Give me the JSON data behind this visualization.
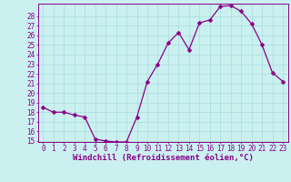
{
  "x": [
    0,
    1,
    2,
    3,
    4,
    5,
    6,
    7,
    8,
    9,
    10,
    11,
    12,
    13,
    14,
    15,
    16,
    17,
    18,
    19,
    20,
    21,
    22,
    23
  ],
  "y": [
    18.5,
    18.0,
    18.0,
    17.7,
    17.5,
    15.2,
    15.0,
    14.9,
    14.9,
    17.5,
    21.2,
    23.0,
    25.2,
    26.3,
    24.5,
    27.3,
    27.6,
    29.0,
    29.1,
    28.5,
    27.2,
    25.0,
    22.1,
    21.2
  ],
  "line_color": "#880088",
  "marker": "D",
  "marker_size": 2.5,
  "bg_color": "#caf0f0",
  "grid_color": "#aadddd",
  "axis_color": "#880088",
  "xlabel": "Windchill (Refroidissement éolien,°C)",
  "ylim": [
    15,
    29
  ],
  "xlim": [
    -0.5,
    23.5
  ],
  "yticks": [
    15,
    16,
    17,
    18,
    19,
    20,
    21,
    22,
    23,
    24,
    25,
    26,
    27,
    28
  ],
  "xticks": [
    0,
    1,
    2,
    3,
    4,
    5,
    6,
    7,
    8,
    9,
    10,
    11,
    12,
    13,
    14,
    15,
    16,
    17,
    18,
    19,
    20,
    21,
    22,
    23
  ],
  "title_color": "#880088",
  "tick_label_color": "#880088",
  "font_size": 5.5,
  "xlabel_fontsize": 6.5
}
